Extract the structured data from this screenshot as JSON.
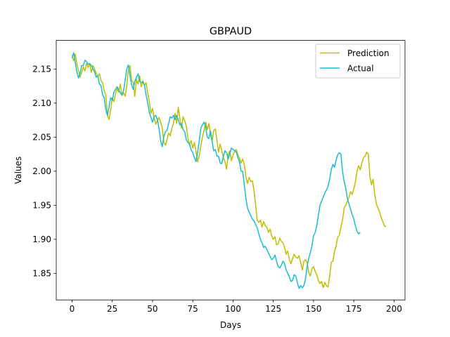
{
  "chart_data": {
    "type": "line",
    "title": "GBPAUD",
    "xlabel": "Days",
    "ylabel": "Values",
    "xlim": [
      -9.8,
      206.8
    ],
    "ylim": [
      1.811,
      2.192
    ],
    "xticks": [
      0,
      25,
      50,
      75,
      100,
      125,
      150,
      175,
      200
    ],
    "xtick_labels": [
      "0",
      "25",
      "50",
      "75",
      "100",
      "125",
      "150",
      "175",
      "200"
    ],
    "yticks": [
      1.85,
      1.9,
      1.95,
      2.0,
      2.05,
      2.1,
      2.15
    ],
    "ytick_labels": [
      "1.85",
      "1.90",
      "1.95",
      "2.00",
      "2.05",
      "2.10",
      "2.15"
    ],
    "grid": false,
    "legend_position": "top-right",
    "series": [
      {
        "name": "Prediction",
        "color": "#bfbf00",
        "values": [
          2.17,
          2.162,
          2.172,
          2.158,
          2.148,
          2.138,
          2.145,
          2.153,
          2.147,
          2.158,
          2.152,
          2.158,
          2.145,
          2.155,
          2.15,
          2.144,
          2.139,
          2.143,
          2.133,
          2.13,
          2.118,
          2.112,
          2.082,
          2.076,
          2.09,
          2.108,
          2.102,
          2.114,
          2.121,
          2.116,
          2.128,
          2.111,
          2.115,
          2.11,
          2.126,
          2.148,
          2.155,
          2.133,
          2.131,
          2.11,
          2.135,
          2.128,
          2.14,
          2.124,
          2.133,
          2.126,
          2.13,
          2.115,
          2.102,
          2.085,
          2.092,
          2.078,
          2.069,
          2.074,
          2.079,
          2.072,
          2.064,
          2.043,
          2.038,
          2.046,
          2.056,
          2.052,
          2.063,
          2.07,
          2.085,
          2.07,
          2.094,
          2.077,
          2.063,
          2.08,
          2.074,
          2.066,
          2.048,
          2.039,
          2.045,
          2.034,
          2.042,
          2.029,
          2.014,
          2.023,
          2.037,
          2.05,
          2.06,
          2.072,
          2.061,
          2.07,
          2.054,
          2.044,
          2.06,
          2.062,
          2.045,
          2.028,
          2.04,
          2.03,
          2.02,
          2.014,
          2.003,
          2.025,
          2.03,
          2.015,
          2.024,
          2.029,
          2.032,
          2.024,
          2.019,
          2.012,
          2.018,
          2.01,
          1.992,
          1.982,
          1.991,
          1.985,
          1.986,
          1.972,
          1.952,
          1.928,
          1.925,
          1.928,
          1.918,
          1.926,
          1.92,
          1.918,
          1.91,
          1.915,
          1.905,
          1.9,
          1.904,
          1.892,
          1.893,
          1.902,
          1.897,
          1.895,
          1.888,
          1.878,
          1.883,
          1.87,
          1.864,
          1.872,
          1.878,
          1.874,
          1.872,
          1.876,
          1.866,
          1.855,
          1.868,
          1.87,
          1.866,
          1.852,
          1.846,
          1.857,
          1.86,
          1.853,
          1.848,
          1.839,
          1.835,
          1.838,
          1.829,
          1.837,
          1.832,
          1.83,
          1.846,
          1.866,
          1.868,
          1.882,
          1.89,
          1.903,
          1.906,
          1.918,
          1.928,
          1.946,
          1.95,
          1.956,
          1.962,
          1.97,
          1.966,
          1.974,
          1.985,
          2.0,
          2.008,
          2.002,
          2.012,
          2.02,
          2.022,
          2.028,
          2.025,
          1.992,
          1.98,
          1.988,
          1.966,
          1.952,
          1.946,
          1.94,
          1.932,
          1.926,
          1.92,
          1.918
        ]
      },
      {
        "name": "Actual",
        "color": "#17becf",
        "values": [
          2.166,
          2.174,
          2.16,
          2.146,
          2.137,
          2.144,
          2.155,
          2.155,
          2.163,
          2.161,
          2.157,
          2.158,
          2.155,
          2.15,
          2.146,
          2.138,
          2.14,
          2.128,
          2.126,
          2.112,
          2.108,
          2.09,
          2.082,
          2.094,
          2.108,
          2.104,
          2.116,
          2.12,
          2.124,
          2.12,
          2.115,
          2.112,
          2.118,
          2.134,
          2.15,
          2.156,
          2.14,
          2.127,
          2.12,
          2.132,
          2.138,
          2.143,
          2.132,
          2.13,
          2.131,
          2.126,
          2.112,
          2.1,
          2.086,
          2.079,
          2.072,
          2.08,
          2.082,
          2.076,
          2.063,
          2.045,
          2.036,
          2.05,
          2.058,
          2.06,
          2.07,
          2.08,
          2.078,
          2.082,
          2.076,
          2.082,
          2.075,
          2.068,
          2.07,
          2.061,
          2.058,
          2.046,
          2.042,
          2.04,
          2.031,
          2.027,
          2.02,
          2.014,
          2.028,
          2.044,
          2.063,
          2.068,
          2.072,
          2.065,
          2.05,
          2.048,
          2.059,
          2.044,
          2.03,
          2.032,
          2.022,
          2.022,
          2.012,
          2.011,
          2.022,
          2.03,
          2.027,
          2.018,
          2.026,
          2.034,
          2.032,
          2.03,
          2.028,
          2.02,
          2.014,
          2.0,
          2.0,
          1.98,
          1.96,
          1.946,
          1.94,
          1.935,
          1.93,
          1.927,
          1.922,
          1.917,
          1.908,
          1.9,
          1.895,
          1.888,
          1.89,
          1.885,
          1.88,
          1.875,
          1.87,
          1.872,
          1.877,
          1.868,
          1.86,
          1.858,
          1.862,
          1.868,
          1.864,
          1.855,
          1.85,
          1.845,
          1.838,
          1.84,
          1.848,
          1.846,
          1.836,
          1.828,
          1.832,
          1.829,
          1.832,
          1.842,
          1.86,
          1.872,
          1.88,
          1.89,
          1.905,
          1.91,
          1.92,
          1.935,
          1.95,
          1.956,
          1.962,
          1.968,
          1.972,
          1.978,
          1.988,
          2.002,
          2.01,
          2.006,
          2.016,
          2.024,
          2.027,
          2.025,
          2.0,
          1.985,
          1.975,
          1.96,
          1.952,
          1.944,
          1.936,
          1.93,
          1.92,
          1.912,
          1.908,
          1.91
        ]
      }
    ]
  }
}
